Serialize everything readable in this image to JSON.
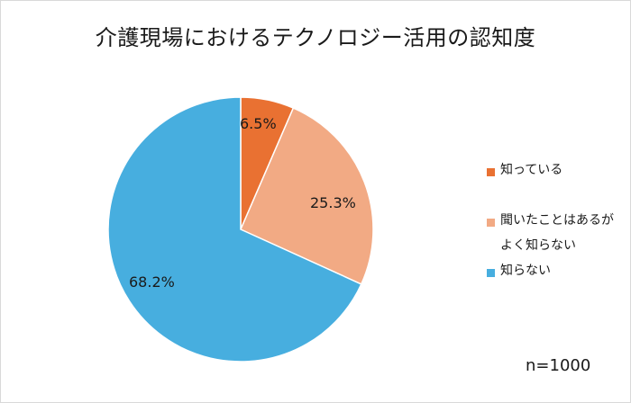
{
  "title": "介護現場におけるテクノロジー活用の認知度",
  "n_label": "n=1000",
  "slices": [
    {
      "label": "知っている",
      "value": 6.5,
      "display": "6.5%",
      "color": "#E97132"
    },
    {
      "label": "聞いたことはあるがよく知らない",
      "label_line1": "聞いたことはあるが",
      "label_line2": "よく知らない",
      "value": 25.3,
      "display": "25.3%",
      "color": "#F2AA84"
    },
    {
      "label": "知らない",
      "value": 68.2,
      "display": "68.2%",
      "color": "#47AEDF"
    }
  ],
  "chart_data": {
    "type": "pie",
    "title": "介護現場におけるテクノロジー活用の認知度",
    "categories": [
      "知っている",
      "聞いたことはあるがよく知らない",
      "知らない"
    ],
    "values": [
      6.5,
      25.3,
      68.2
    ],
    "unit": "%",
    "colors": [
      "#E97132",
      "#F2AA84",
      "#47AEDF"
    ],
    "start_angle": "12 o'clock, clockwise",
    "legend_position": "right",
    "annotation": "n=1000"
  }
}
